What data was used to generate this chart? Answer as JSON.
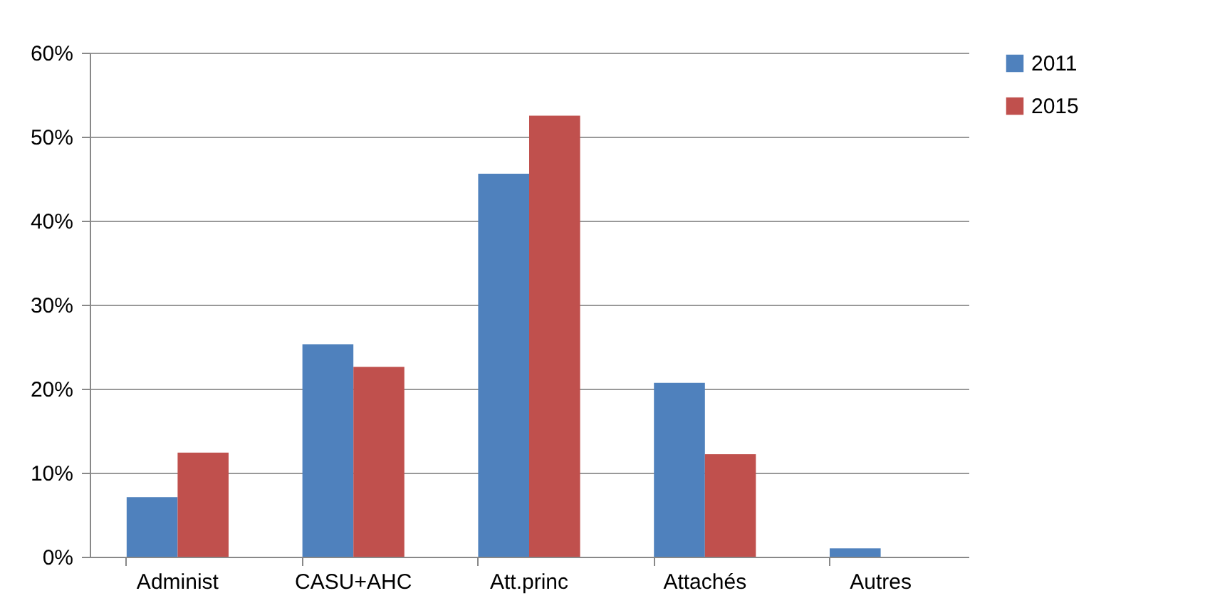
{
  "chart_data": {
    "type": "bar",
    "categories": [
      "Administ",
      "CASU+AHC",
      "Att.princ",
      "Attachés",
      "Autres"
    ],
    "series": [
      {
        "name": "2011",
        "color": "#4f81bd",
        "values": [
          7.1,
          25.3,
          45.6,
          20.7,
          1.0
        ]
      },
      {
        "name": "2015",
        "color": "#c0504d",
        "values": [
          12.4,
          22.6,
          52.5,
          12.2,
          0
        ]
      }
    ],
    "ylim": [
      0,
      60
    ],
    "yticks": [
      {
        "value": 0,
        "label": "0%"
      },
      {
        "value": 10,
        "label": "10%"
      },
      {
        "value": 20,
        "label": "20%"
      },
      {
        "value": 30,
        "label": "30%"
      },
      {
        "value": 40,
        "label": "40%"
      },
      {
        "value": 50,
        "label": "50%"
      },
      {
        "value": 60,
        "label": "60%"
      }
    ],
    "grid": "y",
    "legend": "right"
  }
}
